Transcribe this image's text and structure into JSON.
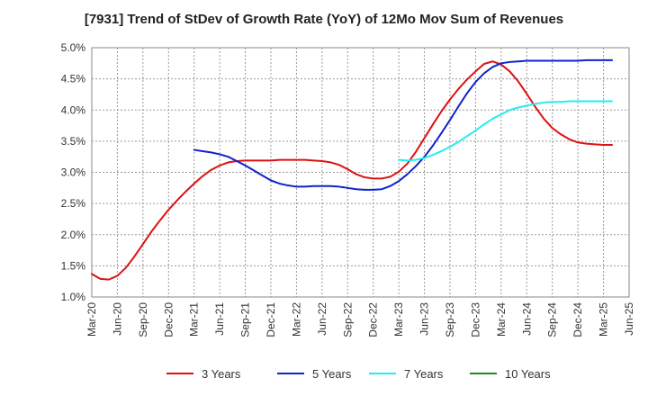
{
  "chart_data": {
    "type": "line",
    "title": "[7931]  Trend of StDev of Growth Rate (YoY) of 12Mo Mov Sum of Revenues",
    "xlabel": "",
    "ylabel": "",
    "ylim": [
      1.0,
      5.0
    ],
    "y_ticks": [
      1.0,
      1.5,
      2.0,
      2.5,
      3.0,
      3.5,
      4.0,
      4.5,
      5.0
    ],
    "y_tick_labels": [
      "1.0%",
      "1.5%",
      "2.0%",
      "2.5%",
      "3.0%",
      "3.5%",
      "4.0%",
      "4.5%",
      "5.0%"
    ],
    "x_start": "Mar-20",
    "x_end": "Jun-25",
    "x_tick_labels": [
      "Mar-20",
      "Jun-20",
      "Sep-20",
      "Dec-20",
      "Mar-21",
      "Jun-21",
      "Sep-21",
      "Dec-21",
      "Mar-22",
      "Jun-22",
      "Sep-22",
      "Dec-22",
      "Mar-23",
      "Jun-23",
      "Sep-23",
      "Dec-23",
      "Mar-24",
      "Jun-24",
      "Sep-24",
      "Dec-24",
      "Mar-25",
      "Jun-25"
    ],
    "grid": true,
    "legend_position": "bottom",
    "series": [
      {
        "name": "3 Years",
        "color": "#dd1111",
        "start_month_index": 0,
        "values": [
          1.37,
          1.29,
          1.28,
          1.34,
          1.47,
          1.65,
          1.85,
          2.05,
          2.23,
          2.4,
          2.55,
          2.69,
          2.82,
          2.94,
          3.04,
          3.11,
          3.16,
          3.18,
          3.19,
          3.19,
          3.19,
          3.19,
          3.2,
          3.2,
          3.2,
          3.2,
          3.19,
          3.18,
          3.16,
          3.12,
          3.05,
          2.97,
          2.92,
          2.9,
          2.9,
          2.93,
          3.01,
          3.14,
          3.33,
          3.55,
          3.77,
          3.98,
          4.17,
          4.34,
          4.49,
          4.62,
          4.74,
          4.78,
          4.73,
          4.62,
          4.46,
          4.26,
          4.05,
          3.86,
          3.71,
          3.61,
          3.53,
          3.48,
          3.46,
          3.45,
          3.44,
          3.44
        ]
      },
      {
        "name": "5 Years",
        "color": "#1122cc",
        "start_month_index": 12,
        "values": [
          3.36,
          3.34,
          3.32,
          3.29,
          3.25,
          3.18,
          3.11,
          3.03,
          2.95,
          2.87,
          2.82,
          2.79,
          2.77,
          2.77,
          2.78,
          2.78,
          2.78,
          2.77,
          2.75,
          2.73,
          2.72,
          2.72,
          2.73,
          2.78,
          2.86,
          2.97,
          3.1,
          3.25,
          3.43,
          3.63,
          3.84,
          4.06,
          4.27,
          4.45,
          4.59,
          4.69,
          4.75,
          4.77,
          4.78,
          4.79,
          4.79,
          4.79,
          4.79,
          4.79,
          4.79,
          4.79,
          4.8,
          4.8,
          4.8,
          4.8
        ]
      },
      {
        "name": "7 Years",
        "color": "#22eeee",
        "start_month_index": 36,
        "values": [
          3.2,
          3.19,
          3.2,
          3.23,
          3.28,
          3.34,
          3.41,
          3.49,
          3.58,
          3.67,
          3.77,
          3.86,
          3.93,
          4.0,
          4.04,
          4.07,
          4.1,
          4.12,
          4.13,
          4.13,
          4.14,
          4.14,
          4.14,
          4.14,
          4.14,
          4.14
        ]
      },
      {
        "name": "10 Years",
        "color": "#228822",
        "start_month_index": null,
        "values": []
      }
    ]
  }
}
